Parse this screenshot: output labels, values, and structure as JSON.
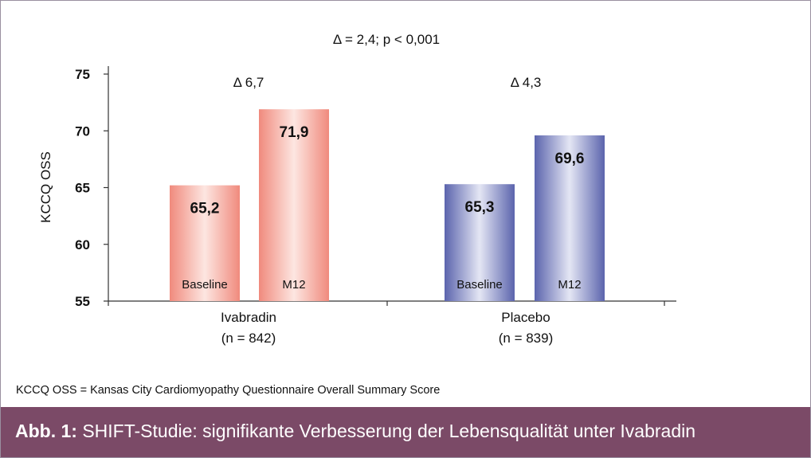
{
  "chart_data": {
    "type": "bar",
    "ylabel": "KCCQ OSS",
    "ylim": [
      55,
      75
    ],
    "yticks": [
      55,
      60,
      65,
      70,
      75
    ],
    "top_annotation": "Δ = 2,4; p < 0,001",
    "groups": [
      {
        "name": "Ivabradin",
        "n_label": "(n = 842)",
        "delta_label": "Δ 6,7",
        "bars": [
          {
            "name": "Baseline",
            "value": 65.2,
            "label": "65,2"
          },
          {
            "name": "M12",
            "value": 71.9,
            "label": "71,9"
          }
        ]
      },
      {
        "name": "Placebo",
        "n_label": "(n = 839)",
        "delta_label": "Δ 4,3",
        "bars": [
          {
            "name": "Baseline",
            "value": 65.3,
            "label": "65,3"
          },
          {
            "name": "M12",
            "value": 69.6,
            "label": "69,6"
          }
        ]
      }
    ],
    "colors": {
      "ivabradin_edge": "#f08a7d",
      "ivabradin_center": "#fde6e1",
      "placebo_edge": "#5b64ad",
      "placebo_center": "#e4e6f4"
    }
  },
  "footnote": "KCCQ OSS = Kansas City Cardiomyopathy Questionnaire Overall Summary Score",
  "caption": {
    "label": "Abb. 1:",
    "text": " SHIFT-Studie: signifikante Verbesserung der Lebensqualität unter Ivabradin",
    "background": "#7b4a67"
  }
}
